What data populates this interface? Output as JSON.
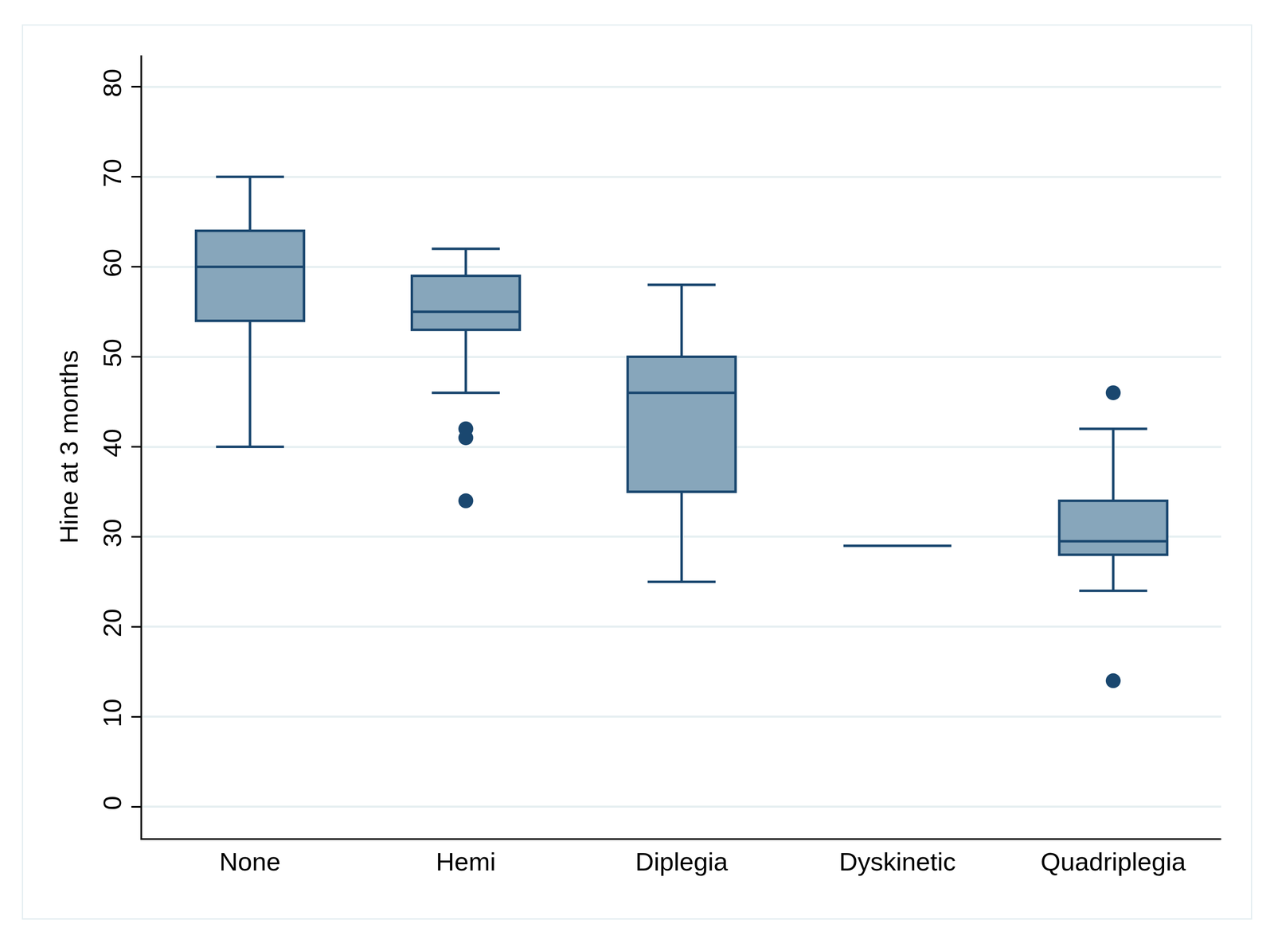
{
  "chart_data": {
    "type": "box",
    "y_label": "Hine at 3 months",
    "categories": [
      "None",
      "Hemi",
      "Diplegia",
      "Dyskinetic",
      "Quadriplegia"
    ],
    "lower_whisker": [
      40,
      46,
      25,
      29,
      24
    ],
    "q1": [
      54,
      53,
      35,
      29,
      28
    ],
    "median": [
      60,
      55,
      46,
      29,
      29.5
    ],
    "q3": [
      64,
      59,
      50,
      29,
      34
    ],
    "upper_whisker": [
      70,
      62,
      58,
      29,
      42
    ],
    "outliers": [
      [],
      [
        42,
        41,
        34
      ],
      [],
      [],
      [
        46,
        14
      ]
    ],
    "color": "#87a6bb",
    "ylim": [
      -3.5,
      83.5
    ],
    "yticks": [
      0,
      10,
      20,
      30,
      40,
      50,
      60,
      70,
      80
    ],
    "grid": true
  }
}
